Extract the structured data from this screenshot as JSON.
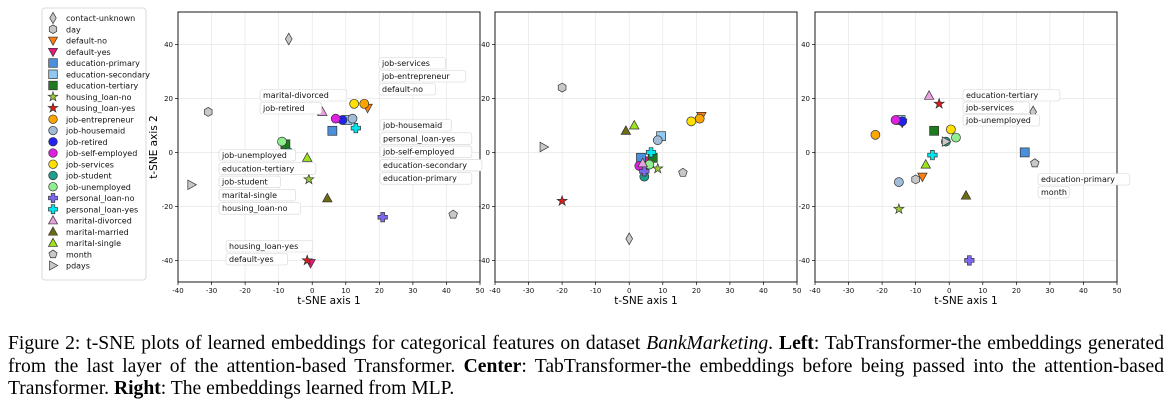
{
  "figure": {
    "legend": [
      {
        "name": "contact-unknown",
        "marker": "diamond",
        "color": "#c8c8c8"
      },
      {
        "name": "day",
        "marker": "hexagon",
        "color": "#c8c8c8"
      },
      {
        "name": "default-no",
        "marker": "triangle-down",
        "color": "#ff7f0e"
      },
      {
        "name": "default-yes",
        "marker": "triangle-down",
        "color": "#e6197a"
      },
      {
        "name": "education-primary",
        "marker": "square",
        "color": "#4c8fdd"
      },
      {
        "name": "education-secondary",
        "marker": "square",
        "color": "#8fc8f0"
      },
      {
        "name": "education-tertiary",
        "marker": "square",
        "color": "#1e7a1e"
      },
      {
        "name": "housing_loan-no",
        "marker": "star",
        "color": "#9acd32"
      },
      {
        "name": "housing_loan-yes",
        "marker": "star",
        "color": "#e01a1a"
      },
      {
        "name": "job-entrepreneur",
        "marker": "circle",
        "color": "#ffa500"
      },
      {
        "name": "job-housemaid",
        "marker": "circle",
        "color": "#a0bcd8"
      },
      {
        "name": "job-retired",
        "marker": "circle",
        "color": "#2222ee"
      },
      {
        "name": "job-self-employed",
        "marker": "circle",
        "color": "#e020e0"
      },
      {
        "name": "job-services",
        "marker": "circle",
        "color": "#ffe000"
      },
      {
        "name": "job-student",
        "marker": "circle",
        "color": "#1f9f8f"
      },
      {
        "name": "job-unemployed",
        "marker": "circle",
        "color": "#90ee90"
      },
      {
        "name": "personal_loan-no",
        "marker": "plus",
        "color": "#7b68ee"
      },
      {
        "name": "personal_loan-yes",
        "marker": "plus",
        "color": "#00e5ee"
      },
      {
        "name": "marital-divorced",
        "marker": "triangle-up",
        "color": "#e8a0e0"
      },
      {
        "name": "marital-married",
        "marker": "triangle-up",
        "color": "#6b6b10"
      },
      {
        "name": "marital-single",
        "marker": "triangle-up",
        "color": "#9be31a"
      },
      {
        "name": "month",
        "marker": "pentagon",
        "color": "#c8c8c8"
      },
      {
        "name": "pdays",
        "marker": "triangle-right",
        "color": "#c8c8c8"
      }
    ],
    "xlabel": "t-SNE axis 1",
    "ylabel": "t-SNE axis 2"
  },
  "chart_data": [
    {
      "type": "scatter",
      "panel": "left",
      "xlim": [
        -40,
        50
      ],
      "ylim": [
        -48,
        52
      ],
      "xticks": [
        -40,
        -30,
        -20,
        -10,
        0,
        10,
        20,
        30,
        40,
        50
      ],
      "yticks": [
        -40,
        -20,
        0,
        20,
        40
      ],
      "xlabel": "t-SNE axis 1",
      "ylabel": "t-SNE axis 2",
      "grid": true,
      "points": [
        {
          "series": "contact-unknown",
          "x": -7,
          "y": 42
        },
        {
          "series": "day",
          "x": -31,
          "y": 15
        },
        {
          "series": "default-no",
          "x": 16.5,
          "y": 16.5
        },
        {
          "series": "default-yes",
          "x": -0.5,
          "y": -41
        },
        {
          "series": "education-primary",
          "x": 6,
          "y": 8
        },
        {
          "series": "education-secondary",
          "x": 10.5,
          "y": 12
        },
        {
          "series": "education-tertiary",
          "x": -8,
          "y": 3
        },
        {
          "series": "housing_loan-no",
          "x": -1,
          "y": -10
        },
        {
          "series": "housing_loan-yes",
          "x": -1.5,
          "y": -40
        },
        {
          "series": "job-entrepreneur",
          "x": 15.5,
          "y": 18
        },
        {
          "series": "job-housemaid",
          "x": 12,
          "y": 12.5
        },
        {
          "series": "job-retired",
          "x": 9,
          "y": 12
        },
        {
          "series": "job-self-employed",
          "x": 7,
          "y": 12.5
        },
        {
          "series": "job-services",
          "x": 12.5,
          "y": 18
        },
        {
          "series": "job-student",
          "x": -7,
          "y": 0
        },
        {
          "series": "job-unemployed",
          "x": -9,
          "y": 4
        },
        {
          "series": "personal_loan-no",
          "x": 21,
          "y": -24
        },
        {
          "series": "personal_loan-yes",
          "x": 13,
          "y": 9
        },
        {
          "series": "marital-divorced",
          "x": 3,
          "y": 15
        },
        {
          "series": "marital-married",
          "x": 4.5,
          "y": -17
        },
        {
          "series": "marital-single",
          "x": -1.5,
          "y": -2
        },
        {
          "series": "month",
          "x": 42,
          "y": -23
        },
        {
          "series": "pdays",
          "x": -36,
          "y": -12
        }
      ],
      "annotations_left": [
        "marital-divorced",
        "job-retired"
      ],
      "annotations_top": [
        "job-services",
        "job-entrepreneur",
        "default-no"
      ],
      "annotations_right": [
        "job-housemaid",
        "personal_loan-yes",
        "job-self-employed",
        "education-secondary",
        "education-primary"
      ],
      "annotations_mid": [
        "job-unemployed",
        "education-tertiary",
        "job-student",
        "marital-single",
        "housing_loan-no"
      ],
      "annotations_bottom": [
        "housing_loan-yes",
        "default-yes"
      ]
    },
    {
      "type": "scatter",
      "panel": "center",
      "xlim": [
        -40,
        50
      ],
      "ylim": [
        -48,
        52
      ],
      "xticks": [
        -40,
        -30,
        -20,
        -10,
        0,
        10,
        20,
        30,
        40,
        50
      ],
      "yticks": [
        -40,
        -20,
        0,
        20,
        40
      ],
      "xlabel": "t-SNE axis 1",
      "ylabel": "",
      "grid": true,
      "points": [
        {
          "series": "contact-unknown",
          "x": 0,
          "y": -32
        },
        {
          "series": "day",
          "x": -20,
          "y": 24
        },
        {
          "series": "default-no",
          "x": 21.5,
          "y": 13.5
        },
        {
          "series": "default-yes",
          "x": 5,
          "y": -3
        },
        {
          "series": "education-primary",
          "x": 3.5,
          "y": -2
        },
        {
          "series": "education-secondary",
          "x": 9.5,
          "y": 6
        },
        {
          "series": "education-tertiary",
          "x": 7,
          "y": -2
        },
        {
          "series": "housing_loan-no",
          "x": 8.5,
          "y": -6
        },
        {
          "series": "housing_loan-yes",
          "x": -20,
          "y": -18
        },
        {
          "series": "job-entrepreneur",
          "x": 21,
          "y": 12.5
        },
        {
          "series": "job-housemaid",
          "x": 8.5,
          "y": 4.5
        },
        {
          "series": "job-retired",
          "x": 5,
          "y": -5
        },
        {
          "series": "job-self-employed",
          "x": 3,
          "y": -5
        },
        {
          "series": "job-services",
          "x": 18.5,
          "y": 11.5
        },
        {
          "series": "job-student",
          "x": 4.5,
          "y": -9
        },
        {
          "series": "job-unemployed",
          "x": 6,
          "y": -4.5
        },
        {
          "series": "personal_loan-no",
          "x": 4.5,
          "y": -7
        },
        {
          "series": "personal_loan-yes",
          "x": 6.5,
          "y": 0
        },
        {
          "series": "marital-divorced",
          "x": 4,
          "y": -4
        },
        {
          "series": "marital-married",
          "x": -1,
          "y": 8
        },
        {
          "series": "marital-single",
          "x": 1.5,
          "y": 10
        },
        {
          "series": "month",
          "x": 16,
          "y": -7.5
        },
        {
          "series": "pdays",
          "x": -25.5,
          "y": 2
        }
      ]
    },
    {
      "type": "scatter",
      "panel": "right",
      "xlim": [
        -40,
        50
      ],
      "ylim": [
        -48,
        52
      ],
      "xticks": [
        -40,
        -30,
        -20,
        -10,
        0,
        10,
        20,
        30,
        40,
        50
      ],
      "yticks": [
        -40,
        -20,
        0,
        20,
        40
      ],
      "xlabel": "t-SNE axis 1",
      "ylabel": "",
      "grid": true,
      "points": [
        {
          "series": "contact-unknown",
          "x": 25,
          "y": 15
        },
        {
          "series": "day",
          "x": -10,
          "y": -10
        },
        {
          "series": "default-no",
          "x": -8,
          "y": -9
        },
        {
          "series": "default-yes",
          "x": -14,
          "y": 11
        },
        {
          "series": "education-primary",
          "x": 22.5,
          "y": 0
        },
        {
          "series": "education-secondary",
          "x": -14.5,
          "y": 12
        },
        {
          "series": "education-tertiary",
          "x": -4.5,
          "y": 8
        },
        {
          "series": "housing_loan-no",
          "x": -15,
          "y": -21
        },
        {
          "series": "housing_loan-yes",
          "x": -3,
          "y": 18
        },
        {
          "series": "job-entrepreneur",
          "x": -22,
          "y": 6.5
        },
        {
          "series": "job-housemaid",
          "x": -15,
          "y": -11
        },
        {
          "series": "job-retired",
          "x": -14,
          "y": 11.5
        },
        {
          "series": "job-self-employed",
          "x": -16,
          "y": 12
        },
        {
          "series": "job-services",
          "x": 0.5,
          "y": 8.5
        },
        {
          "series": "job-student",
          "x": -1,
          "y": 4
        },
        {
          "series": "job-unemployed",
          "x": 2,
          "y": 5.5
        },
        {
          "series": "personal_loan-no",
          "x": 6,
          "y": -40
        },
        {
          "series": "personal_loan-yes",
          "x": -5,
          "y": -1
        },
        {
          "series": "marital-divorced",
          "x": -6,
          "y": 21
        },
        {
          "series": "marital-married",
          "x": 5,
          "y": -16
        },
        {
          "series": "marital-single",
          "x": -7,
          "y": -4.5
        },
        {
          "series": "month",
          "x": 25.5,
          "y": -4
        },
        {
          "series": "pdays",
          "x": -1,
          "y": 4
        }
      ],
      "annotations_top": [
        "education-tertiary",
        "job-services",
        "job-unemployed"
      ],
      "annotations_right": [
        "education-primary",
        "month"
      ]
    }
  ],
  "caption": {
    "label": "Figure 2: t-SNE plots of learned embeddings for categorical features on dataset ",
    "dataset": "BankMarketing",
    "after_dataset": ". ",
    "left_bold": "Left",
    "left_text": ": TabTransformer-the embeddings generated from the last layer of the attention-based Transformer. ",
    "center_bold": "Center",
    "center_text": ": TabTransformer-the embeddings before being passed into the attention-based Transformer. ",
    "right_bold": "Right",
    "right_text": ": The embeddings learned from MLP."
  }
}
